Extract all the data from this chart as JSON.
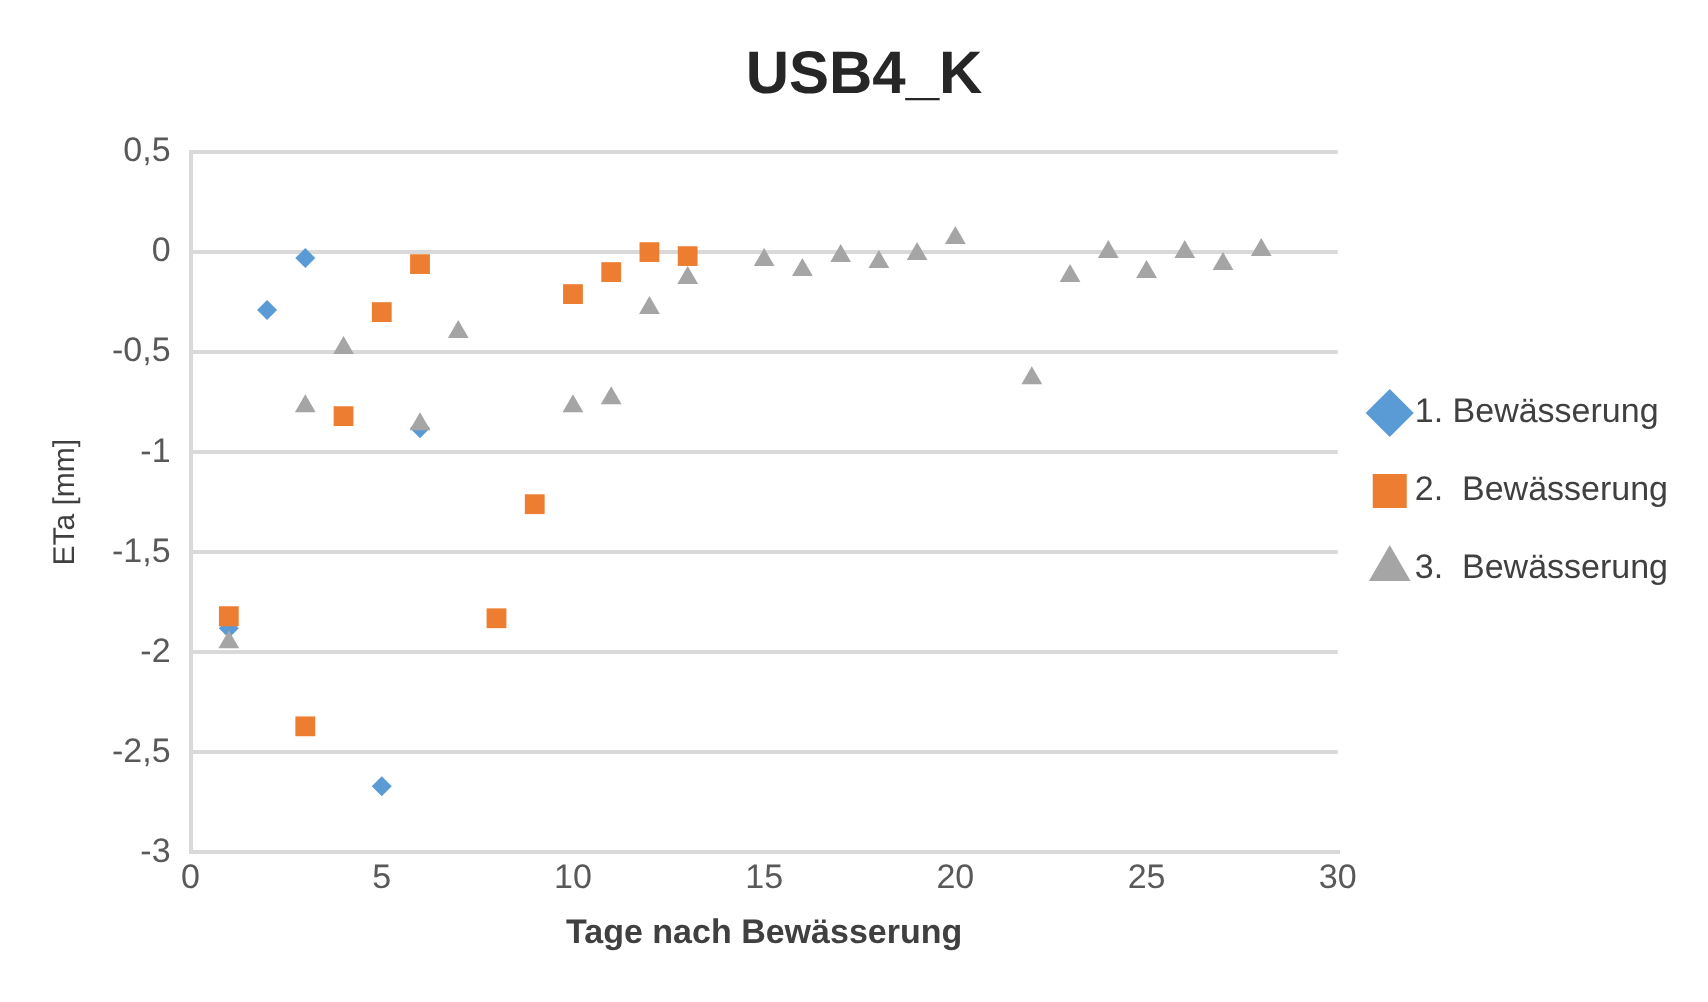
{
  "chart_data": {
    "type": "scatter",
    "title": "USB4_K",
    "xlabel": "Tage nach Bewässerung",
    "ylabel": "ETa [mm]",
    "xlim": [
      0,
      30
    ],
    "xticks": [
      0,
      5,
      10,
      15,
      20,
      25,
      30
    ],
    "ylim": [
      -3,
      0.5
    ],
    "yticks": [
      {
        "value": -3,
        "label": "-3"
      },
      {
        "value": -2.5,
        "label": "-2,5"
      },
      {
        "value": -2,
        "label": "-2"
      },
      {
        "value": -1.5,
        "label": "-1,5"
      },
      {
        "value": -1,
        "label": "-1"
      },
      {
        "value": -0.5,
        "label": "-0,5"
      },
      {
        "value": 0,
        "label": "0"
      },
      {
        "value": 0.5,
        "label": "0,5"
      }
    ],
    "grid": "y",
    "legend": "right",
    "series": [
      {
        "name": "1. Bewässerung",
        "color": "#5b9bd5",
        "marker": "diamond",
        "x": [
          1,
          2,
          3,
          5,
          6
        ],
        "values": [
          -1.88,
          -0.29,
          -0.03,
          -2.67,
          -0.88
        ]
      },
      {
        "name": "2.  Bewässerung",
        "color": "#ed7d31",
        "marker": "square",
        "x": [
          1,
          3,
          4,
          5,
          6,
          8,
          9,
          10,
          11,
          12,
          13
        ],
        "values": [
          -1.82,
          -2.37,
          -0.82,
          -0.3,
          -0.06,
          -1.83,
          -1.26,
          -0.21,
          -0.1,
          0,
          -0.02
        ]
      },
      {
        "name": "3.  Bewässerung",
        "color": "#a5a5a5",
        "marker": "triangle",
        "x": [
          1,
          3,
          4,
          6,
          7,
          10,
          11,
          12,
          13,
          15,
          16,
          17,
          18,
          19,
          20,
          22,
          23,
          24,
          25,
          26,
          27,
          28
        ],
        "values": [
          -1.95,
          -0.77,
          -0.48,
          -0.86,
          -0.4,
          -0.77,
          -0.73,
          -0.28,
          -0.13,
          -0.04,
          -0.09,
          -0.02,
          -0.05,
          -0.01,
          0.07,
          -0.63,
          -0.12,
          0,
          -0.1,
          0,
          -0.06,
          0.01
        ]
      }
    ]
  }
}
